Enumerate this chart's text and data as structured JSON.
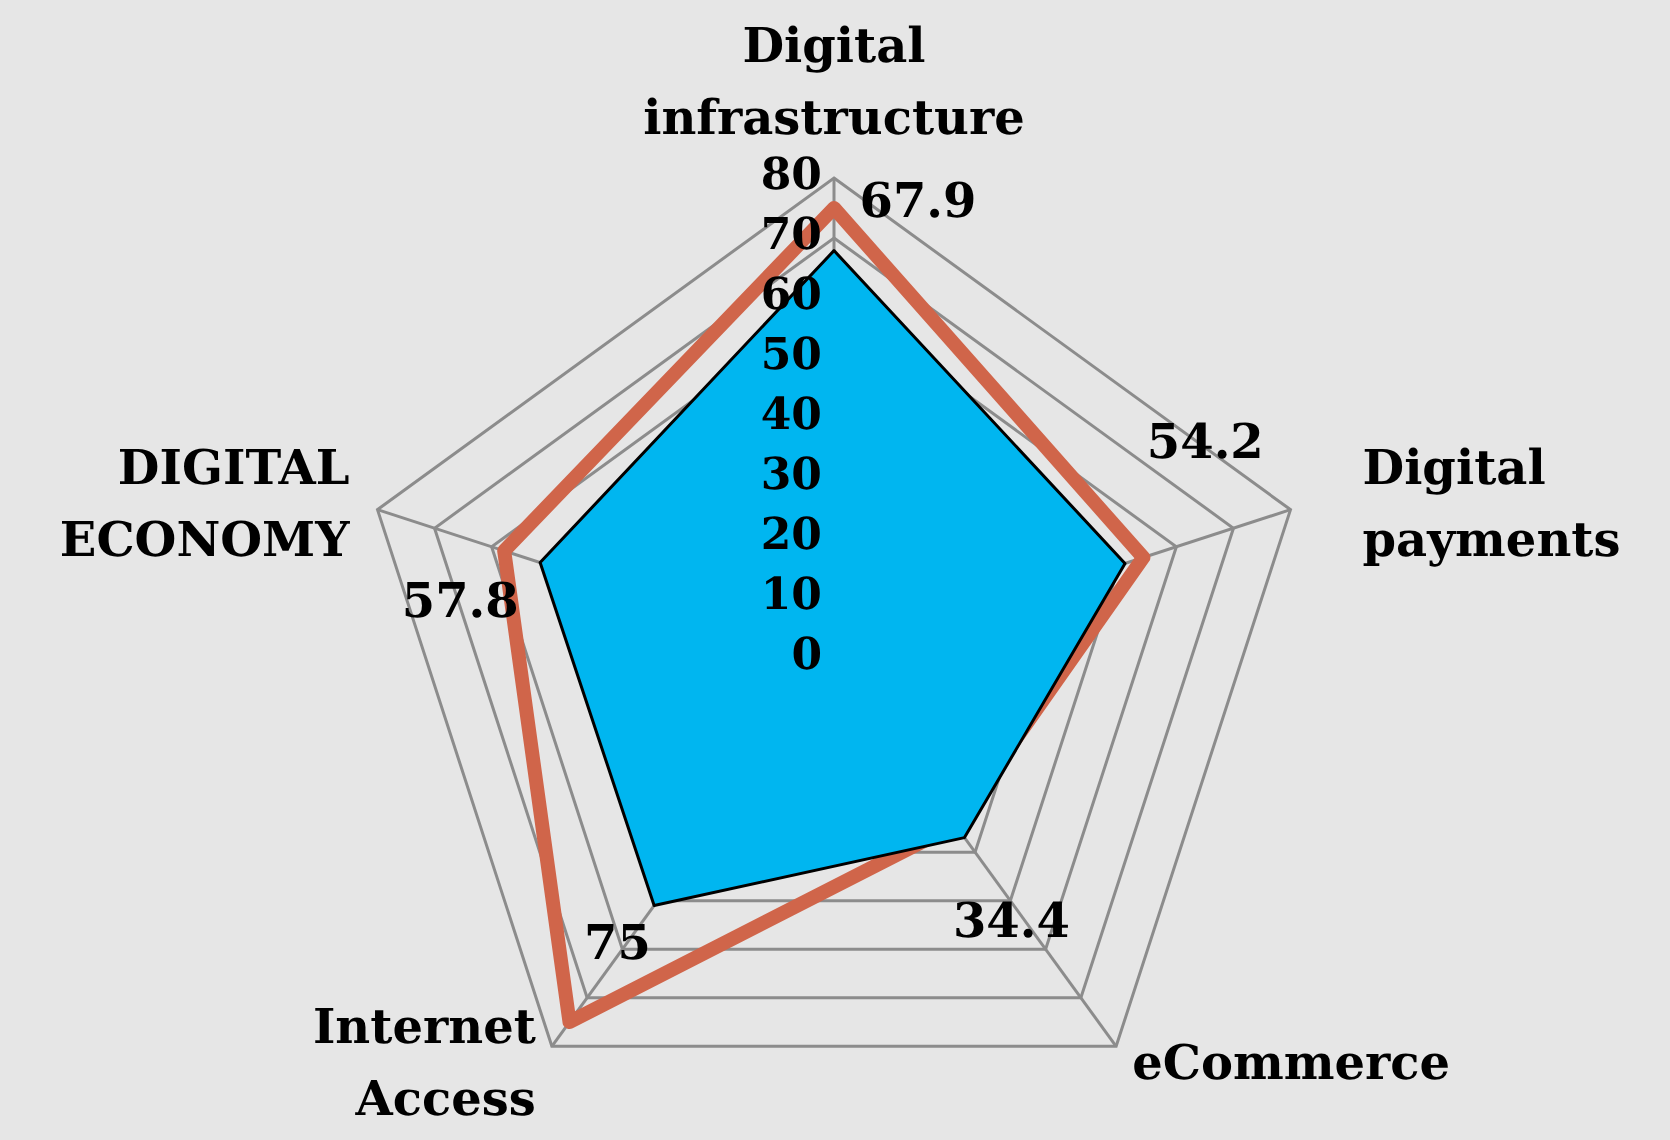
{
  "chart_data": {
    "type": "radar",
    "categories": [
      "Digital infrastructure",
      "Digital payments",
      "eCommerce",
      "Internet Access",
      "DIGITAL ECONOMY"
    ],
    "series": [
      {
        "color": "#00b6f0",
        "values": [
          67.9,
          51,
          37,
          51,
          51.5
        ],
        "value_labels": [
          "67.9",
          null,
          null,
          null,
          null
        ]
      },
      {
        "color": "#d0654a",
        "values": [
          75,
          54.2,
          34.4,
          75,
          57.8
        ],
        "value_labels": [
          null,
          "54.2",
          "34.4",
          "75",
          "57.8"
        ]
      }
    ],
    "ylim": [
      0,
      80
    ],
    "yticks": [
      0,
      10,
      20,
      30,
      40,
      50,
      60,
      70,
      80
    ],
    "grid": true,
    "legend": false,
    "marker": "none"
  }
}
